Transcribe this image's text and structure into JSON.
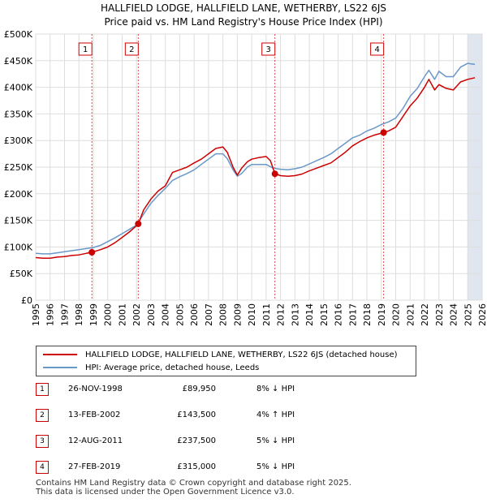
{
  "title_line1": "HALLFIELD LODGE, HALLFIELD LANE, WETHERBY, LS22 6JS",
  "title_line2": "Price paid vs. HM Land Registry's House Price Index (HPI)",
  "colors": {
    "price": "#cc0000",
    "hpi": "#6a98c8",
    "marker": "#cc0000",
    "grid": "#dddddd",
    "shade": "#dfe6f0"
  },
  "legend": {
    "price_label": "HALLFIELD LODGE, HALLFIELD LANE, WETHERBY, LS22 6JS (detached house)",
    "hpi_label": "HPI: Average price, detached house, Leeds"
  },
  "transactions": [
    {
      "num": "1",
      "date": "26-NOV-1998",
      "price": "£89,950",
      "hpi": "8% ↓ HPI",
      "year": 1998.9,
      "value": 89950
    },
    {
      "num": "2",
      "date": "13-FEB-2002",
      "price": "£143,500",
      "hpi": "4% ↑ HPI",
      "year": 2002.12,
      "value": 143500
    },
    {
      "num": "3",
      "date": "12-AUG-2011",
      "price": "£237,500",
      "hpi": "5% ↓ HPI",
      "year": 2011.61,
      "value": 237500
    },
    {
      "num": "4",
      "date": "27-FEB-2019",
      "price": "£315,000",
      "hpi": "5% ↓ HPI",
      "year": 2019.16,
      "value": 315000
    }
  ],
  "footer_line1": "Contains HM Land Registry data © Crown copyright and database right 2025.",
  "footer_line2": "This data is licensed under the Open Government Licence v3.0.",
  "chart_data": {
    "type": "line",
    "title": "HALLFIELD LODGE, HALLFIELD LANE, WETHERBY, LS22 6JS",
    "subtitle": "Price paid vs. HM Land Registry's House Price Index (HPI)",
    "xlabel": "",
    "ylabel": "",
    "xlim": [
      1995,
      2026
    ],
    "ylim": [
      0,
      500000
    ],
    "x_ticks": [
      1995,
      1996,
      1997,
      1998,
      1999,
      2000,
      2001,
      2002,
      2003,
      2004,
      2005,
      2006,
      2007,
      2008,
      2009,
      2010,
      2011,
      2012,
      2013,
      2014,
      2015,
      2016,
      2017,
      2018,
      2019,
      2020,
      2021,
      2022,
      2023,
      2024,
      2025,
      2026
    ],
    "y_ticks": [
      {
        "value": 0,
        "label": "£0"
      },
      {
        "value": 50000,
        "label": "£50K"
      },
      {
        "value": 100000,
        "label": "£100K"
      },
      {
        "value": 150000,
        "label": "£150K"
      },
      {
        "value": 200000,
        "label": "£200K"
      },
      {
        "value": 250000,
        "label": "£250K"
      },
      {
        "value": 300000,
        "label": "£300K"
      },
      {
        "value": 350000,
        "label": "£350K"
      },
      {
        "value": 400000,
        "label": "£400K"
      },
      {
        "value": 450000,
        "label": "£450K"
      },
      {
        "value": 500000,
        "label": "£500K"
      }
    ],
    "grid": true,
    "shaded_after": 2025.0,
    "series": [
      {
        "name": "HALLFIELD LODGE, HALLFIELD LANE, WETHERBY, LS22 6JS (detached house)",
        "x": [
          1995,
          1995.5,
          1996,
          1996.5,
          1997,
          1997.5,
          1998,
          1998.5,
          1998.9,
          1999.5,
          2000,
          2000.5,
          2001,
          2001.5,
          2002,
          2002.12,
          2002.5,
          2003,
          2003.5,
          2004,
          2004.5,
          2005,
          2005.5,
          2006,
          2006.5,
          2007,
          2007.5,
          2008,
          2008.3,
          2008.7,
          2009,
          2009.3,
          2009.7,
          2010,
          2010.5,
          2011,
          2011.3,
          2011.61,
          2012,
          2012.5,
          2013,
          2013.5,
          2014,
          2014.5,
          2015,
          2015.5,
          2016,
          2016.5,
          2017,
          2017.5,
          2018,
          2018.5,
          2019.16,
          2019.5,
          2020,
          2020.5,
          2021,
          2021.5,
          2022,
          2022.3,
          2022.7,
          2023,
          2023.5,
          2024,
          2024.5,
          2025,
          2025.5
        ],
        "values": [
          80000,
          79000,
          79000,
          81000,
          82000,
          84000,
          85000,
          88000,
          89950,
          95000,
          100000,
          108000,
          118000,
          128000,
          140000,
          143500,
          170000,
          190000,
          205000,
          215000,
          240000,
          245000,
          250000,
          258000,
          265000,
          275000,
          285000,
          288000,
          278000,
          250000,
          235000,
          248000,
          260000,
          265000,
          268000,
          270000,
          262000,
          237500,
          234000,
          233000,
          234000,
          237000,
          243000,
          248000,
          253000,
          258000,
          268000,
          278000,
          290000,
          298000,
          305000,
          310000,
          315000,
          318000,
          325000,
          345000,
          365000,
          380000,
          400000,
          415000,
          395000,
          405000,
          398000,
          395000,
          410000,
          415000,
          418000
        ]
      },
      {
        "name": "HPI: Average price, detached house, Leeds",
        "x": [
          1995,
          1995.5,
          1996,
          1996.5,
          1997,
          1997.5,
          1998,
          1998.5,
          1999,
          1999.5,
          2000,
          2000.5,
          2001,
          2001.5,
          2002,
          2002.5,
          2003,
          2003.5,
          2004,
          2004.5,
          2005,
          2005.5,
          2006,
          2006.5,
          2007,
          2007.5,
          2008,
          2008.3,
          2008.7,
          2009,
          2009.3,
          2009.7,
          2010,
          2010.5,
          2011,
          2011.5,
          2012,
          2012.5,
          2013,
          2013.5,
          2014,
          2014.5,
          2015,
          2015.5,
          2016,
          2016.5,
          2017,
          2017.5,
          2018,
          2018.5,
          2019,
          2019.5,
          2020,
          2020.5,
          2021,
          2021.5,
          2022,
          2022.3,
          2022.7,
          2023,
          2023.5,
          2024,
          2024.5,
          2025,
          2025.5
        ],
        "values": [
          88000,
          87000,
          87000,
          89000,
          91000,
          93000,
          95000,
          97000,
          99000,
          103000,
          110000,
          117000,
          125000,
          133000,
          141000,
          162000,
          182000,
          197000,
          210000,
          225000,
          232000,
          238000,
          245000,
          255000,
          265000,
          275000,
          275000,
          266000,
          245000,
          233000,
          238000,
          250000,
          255000,
          255000,
          255000,
          248000,
          246000,
          245000,
          247000,
          250000,
          256000,
          262000,
          268000,
          275000,
          285000,
          295000,
          305000,
          310000,
          318000,
          323000,
          330000,
          335000,
          342000,
          360000,
          383000,
          398000,
          420000,
          432000,
          415000,
          430000,
          420000,
          420000,
          438000,
          445000,
          443000
        ]
      }
    ],
    "annotations": [
      {
        "label": "1",
        "x": 1998.9
      },
      {
        "label": "2",
        "x": 2002.12
      },
      {
        "label": "3",
        "x": 2011.61
      },
      {
        "label": "4",
        "x": 2019.16
      }
    ]
  }
}
